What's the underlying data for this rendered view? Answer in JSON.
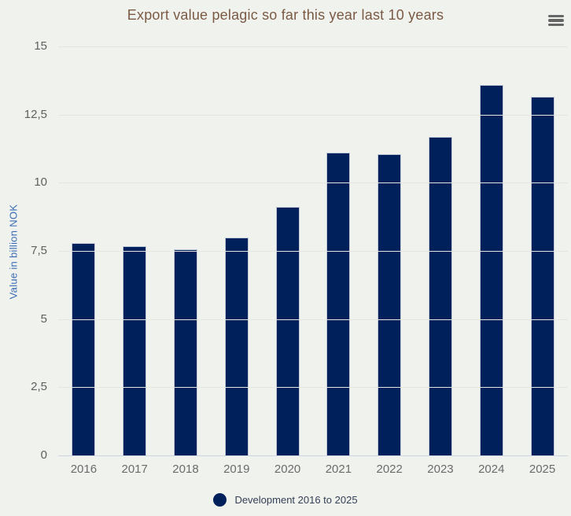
{
  "header": {
    "menu_icon": "hamburger-menu"
  },
  "chart_data": {
    "type": "bar",
    "title": "Export value pelagic so far this year last 10 years",
    "categories": [
      "2016",
      "2017",
      "2018",
      "2019",
      "2020",
      "2021",
      "2022",
      "2023",
      "2024",
      "2025"
    ],
    "values": [
      7.78,
      7.66,
      7.55,
      8.0,
      9.12,
      11.1,
      11.05,
      11.67,
      13.6,
      13.15
    ],
    "series_name": "Development 2016 to 2025",
    "xlabel": "",
    "ylabel": "Value in billion NOK",
    "ylim": [
      0,
      15
    ],
    "ytick_step": 2.5,
    "yticks": [
      {
        "value": 0,
        "label": "0"
      },
      {
        "value": 2.5,
        "label": "2,5"
      },
      {
        "value": 5,
        "label": "5"
      },
      {
        "value": 7.5,
        "label": "7,5"
      },
      {
        "value": 10,
        "label": "10"
      },
      {
        "value": 12.5,
        "label": "12,5"
      },
      {
        "value": 15,
        "label": "15"
      }
    ],
    "grid": true,
    "legend_position": "bottom"
  },
  "colors": {
    "background": "#f0f2ee",
    "bar": "#00205b",
    "title": "#7b5a44",
    "y_axis_title": "#3a6cb4",
    "tick_label": "#606060",
    "x_label": "#6b6b6b",
    "gridline": "#e3e6e1",
    "axis_line": "#ccd3e1",
    "legend_text": "#333f54",
    "menu_icon": "#666666"
  }
}
